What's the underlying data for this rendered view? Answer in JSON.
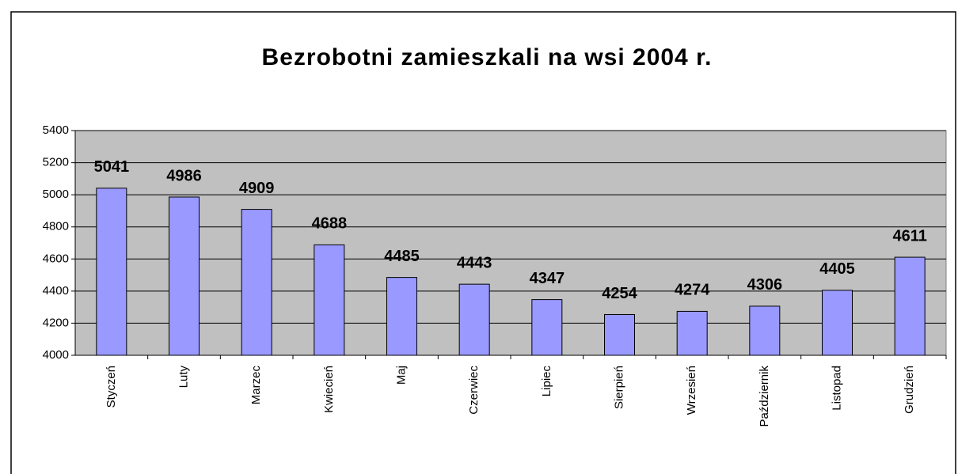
{
  "chart_data": {
    "type": "bar",
    "title": "Bezrobotni zamieszkali na wsi 2004 r.",
    "categories": [
      "Styczeń",
      "Luty",
      "Marzec",
      "Kwiecień",
      "Maj",
      "Czerwiec",
      "Lipiec",
      "Sierpień",
      "Wrzesień",
      "Październik",
      "Listopad",
      "Grudzień"
    ],
    "values": [
      5041,
      4986,
      4909,
      4688,
      4485,
      4443,
      4347,
      4254,
      4274,
      4306,
      4405,
      4611
    ],
    "color": "#9999ff",
    "ylim": [
      4000,
      5400
    ],
    "yticks": [
      4000,
      4200,
      4400,
      4600,
      4800,
      5000,
      5200,
      5400
    ],
    "grid": true
  }
}
